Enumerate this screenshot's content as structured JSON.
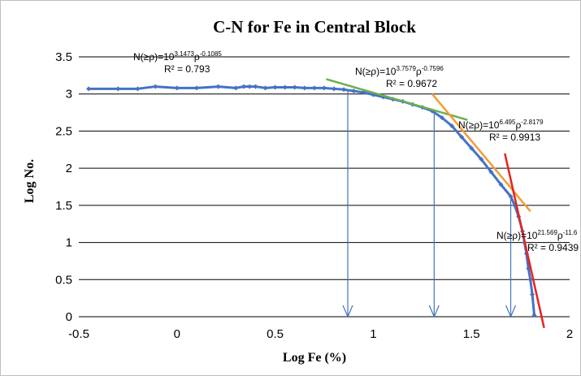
{
  "chart_data": {
    "type": "scatter",
    "title": "C-N for Fe in Central Block",
    "xlabel": "Log Fe (%)",
    "ylabel": "Log No.",
    "xlim": [
      -0.5,
      2
    ],
    "ylim": [
      0,
      3.5
    ],
    "xticks": [
      -0.5,
      0,
      0.5,
      1,
      1.5,
      2
    ],
    "xtick_labels": [
      "-0.5",
      "0",
      "0.5",
      "1",
      "1.5",
      "2"
    ],
    "yticks": [
      0,
      0.5,
      1,
      1.5,
      2,
      2.5,
      3,
      3.5
    ],
    "ytick_labels": [
      "0",
      "0.5",
      "1",
      "1.5",
      "2",
      "2.5",
      "3",
      "3.5"
    ],
    "grid": "horizontal",
    "legend": "none",
    "colors": {
      "points": "#4472c4",
      "arrows": "#4472c4",
      "grid": "#000000"
    },
    "series": [
      {
        "marker": "diamond",
        "points": [
          [
            -0.45,
            3.07
          ],
          [
            -0.3,
            3.07
          ],
          [
            -0.2,
            3.07
          ],
          [
            -0.11,
            3.1
          ],
          [
            0.0,
            3.08
          ],
          [
            0.1,
            3.08
          ],
          [
            0.21,
            3.1
          ],
          [
            0.3,
            3.08
          ],
          [
            0.34,
            3.1
          ],
          [
            0.37,
            3.1
          ],
          [
            0.4,
            3.1
          ],
          [
            0.45,
            3.08
          ],
          [
            0.5,
            3.09
          ],
          [
            0.55,
            3.09
          ],
          [
            0.6,
            3.09
          ],
          [
            0.65,
            3.08
          ],
          [
            0.7,
            3.08
          ],
          [
            0.75,
            3.08
          ],
          [
            0.8,
            3.07
          ],
          [
            0.85,
            3.06
          ],
          [
            0.9,
            3.04
          ],
          [
            0.95,
            3.02
          ],
          [
            1.0,
            2.99
          ],
          [
            1.05,
            2.96
          ],
          [
            1.1,
            2.93
          ],
          [
            1.15,
            2.9
          ],
          [
            1.2,
            2.86
          ],
          [
            1.25,
            2.82
          ],
          [
            1.3,
            2.77
          ],
          [
            1.35,
            2.68
          ],
          [
            1.4,
            2.57
          ],
          [
            1.45,
            2.42
          ],
          [
            1.5,
            2.27
          ],
          [
            1.55,
            2.12
          ],
          [
            1.6,
            1.95
          ],
          [
            1.65,
            1.78
          ],
          [
            1.7,
            1.62
          ],
          [
            1.72,
            1.5
          ],
          [
            1.74,
            1.35
          ],
          [
            1.76,
            1.15
          ],
          [
            1.77,
            1.0
          ],
          [
            1.78,
            0.85
          ],
          [
            1.79,
            0.65
          ],
          [
            1.8,
            0.5
          ],
          [
            1.81,
            0.3
          ],
          [
            1.82,
            0.02
          ]
        ]
      }
    ],
    "fit_lines": [
      {
        "color": "#6ab04c",
        "from": [
          0.76,
          3.2
        ],
        "to": [
          1.48,
          2.65
        ],
        "label_lines": [
          "N(≥ρ)=10",
          "3.7579",
          "ρ",
          "-0.7596",
          "R² = 0.9672"
        ]
      },
      {
        "color": "#f39c34",
        "from": [
          1.3,
          3.0
        ],
        "to": [
          1.8,
          1.42
        ],
        "label_lines": [
          "N(≥ρ)=10",
          "6.495",
          "ρ",
          "-2.8179",
          "R² = 0.9913"
        ]
      },
      {
        "color": "#e8221d",
        "from": [
          1.67,
          2.2
        ],
        "to": [
          1.87,
          -0.15
        ],
        "label_lines": [
          "N(≥ρ)=10",
          "21.569",
          "ρ",
          "-11.6",
          "R² = 0.9439"
        ]
      }
    ],
    "annotations": [
      {
        "base": "N(≥ρ)=10",
        "exp1": "3.1473",
        "mid": "ρ",
        "exp2": "-0.1085",
        "r2": "R² = 0.793"
      },
      {
        "base": "N(≥ρ)=10",
        "exp1": "3.7579",
        "mid": "ρ",
        "exp2": "-0.7596",
        "r2": "R² = 0.9672"
      },
      {
        "base": "N(≥ρ)=10",
        "exp1": "6.495",
        "mid": "ρ",
        "exp2": "-2.8179",
        "r2": "R² = 0.9913"
      },
      {
        "base": "N(≥ρ)=10",
        "exp1": "21.569",
        "mid": "ρ",
        "exp2": "-11.6",
        "r2": "R² = 0.9439"
      }
    ],
    "arrows": [
      {
        "from": [
          0.87,
          3.04
        ],
        "to": [
          0.87,
          0
        ]
      },
      {
        "from": [
          1.31,
          2.77
        ],
        "to": [
          1.31,
          0
        ]
      },
      {
        "from": [
          1.7,
          1.62
        ],
        "to": [
          1.7,
          0
        ]
      }
    ]
  }
}
